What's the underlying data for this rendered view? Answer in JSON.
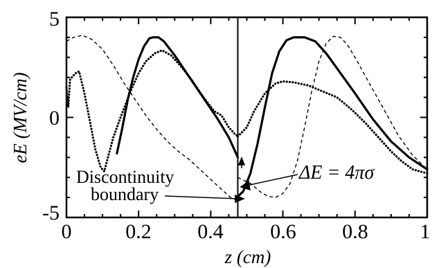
{
  "chart_data": {
    "type": "line",
    "xlabel": "z (cm)",
    "ylabel": "eE (MV/cm)",
    "xlim": [
      0,
      1
    ],
    "ylim": [
      -5,
      5
    ],
    "x_ticks": [
      "0",
      "0.2",
      "0.4",
      "0.6",
      "0.8",
      "1"
    ],
    "y_ticks": [
      "5",
      "0",
      "-5"
    ],
    "grid": false,
    "discontinuity_z": 0.475,
    "annotations": {
      "boundary_line1": "Discontinuity",
      "boundary_line2": "boundary",
      "jump": "ΔE = 4πσ"
    },
    "series": [
      {
        "style": "solid",
        "color": "#000000",
        "points": [
          [
            0.14,
            -1.8
          ],
          [
            0.155,
            -0.5
          ],
          [
            0.17,
            0.9
          ],
          [
            0.185,
            2.0
          ],
          [
            0.2,
            2.9
          ],
          [
            0.215,
            3.55
          ],
          [
            0.23,
            3.95
          ],
          [
            0.24,
            4.0
          ],
          [
            0.255,
            4.0
          ],
          [
            0.27,
            3.8
          ],
          [
            0.3,
            3.1
          ],
          [
            0.33,
            2.3
          ],
          [
            0.36,
            1.5
          ],
          [
            0.39,
            0.7
          ],
          [
            0.42,
            -0.1
          ],
          [
            0.45,
            -1.0
          ],
          [
            0.475,
            -2.0
          ],
          null,
          [
            0.475,
            -3.95
          ],
          [
            0.49,
            -3.7
          ],
          [
            0.51,
            -2.8
          ],
          [
            0.53,
            -1.3
          ],
          [
            0.55,
            0.5
          ],
          [
            0.57,
            2.2
          ],
          [
            0.59,
            3.3
          ],
          [
            0.61,
            3.85
          ],
          [
            0.63,
            4.0
          ],
          [
            0.66,
            4.0
          ],
          [
            0.69,
            3.8
          ],
          [
            0.72,
            3.2
          ],
          [
            0.76,
            2.2
          ],
          [
            0.8,
            1.2
          ],
          [
            0.85,
            -0.1
          ],
          [
            0.9,
            -1.2
          ],
          [
            0.95,
            -2.0
          ],
          [
            1.0,
            -2.6
          ]
        ]
      },
      {
        "style": "dashed",
        "color": "#000000",
        "points": [
          [
            0.0,
            3.8
          ],
          [
            0.02,
            4.0
          ],
          [
            0.045,
            4.1
          ],
          [
            0.07,
            3.9
          ],
          [
            0.1,
            3.4
          ],
          [
            0.13,
            2.6
          ],
          [
            0.16,
            1.7
          ],
          [
            0.19,
            0.9
          ],
          [
            0.22,
            0.1
          ],
          [
            0.25,
            -0.6
          ],
          [
            0.28,
            -1.2
          ],
          [
            0.31,
            -1.7
          ],
          [
            0.34,
            -2.1
          ],
          [
            0.37,
            -2.6
          ],
          [
            0.4,
            -3.1
          ],
          [
            0.43,
            -3.6
          ],
          [
            0.455,
            -4.0
          ],
          [
            0.475,
            -4.15
          ],
          null,
          [
            0.475,
            -3.0
          ],
          [
            0.51,
            -3.3
          ],
          [
            0.54,
            -3.75
          ],
          [
            0.56,
            -3.95
          ],
          [
            0.58,
            -4.0
          ],
          [
            0.6,
            -3.8
          ],
          [
            0.62,
            -3.3
          ],
          [
            0.64,
            -2.2
          ],
          [
            0.66,
            -0.5
          ],
          [
            0.68,
            1.3
          ],
          [
            0.7,
            2.8
          ],
          [
            0.72,
            3.7
          ],
          [
            0.74,
            4.05
          ],
          [
            0.76,
            4.0
          ],
          [
            0.78,
            3.6
          ],
          [
            0.8,
            3.0
          ],
          [
            0.84,
            1.7
          ],
          [
            0.88,
            0.4
          ],
          [
            0.92,
            -0.9
          ],
          [
            0.96,
            -1.9
          ],
          [
            1.0,
            -2.6
          ]
        ]
      },
      {
        "style": "dotted",
        "color": "#000000",
        "points": [
          [
            0.0,
            1.5
          ],
          [
            0.005,
            0.5
          ],
          [
            0.01,
            1.9
          ],
          [
            0.025,
            2.2
          ],
          [
            0.035,
            2.3
          ],
          [
            0.05,
            1.2
          ],
          [
            0.065,
            -0.2
          ],
          [
            0.08,
            -1.6
          ],
          [
            0.095,
            -2.5
          ],
          [
            0.105,
            -2.7
          ],
          [
            0.115,
            -2.0
          ],
          [
            0.13,
            -1.0
          ],
          [
            0.15,
            0.0
          ],
          [
            0.165,
            0.7
          ],
          [
            0.18,
            1.4
          ],
          [
            0.2,
            2.2
          ],
          [
            0.22,
            2.8
          ],
          [
            0.245,
            3.2
          ],
          [
            0.265,
            3.35
          ],
          [
            0.29,
            3.1
          ],
          [
            0.32,
            2.5
          ],
          [
            0.35,
            1.8
          ],
          [
            0.38,
            1.0
          ],
          [
            0.41,
            0.3
          ],
          [
            0.43,
            0.1
          ],
          [
            0.45,
            -0.5
          ],
          [
            0.465,
            -0.8
          ],
          [
            0.475,
            -0.95
          ],
          null,
          [
            0.475,
            -0.95
          ],
          [
            0.5,
            -0.5
          ],
          [
            0.52,
            0.3
          ],
          [
            0.55,
            1.2
          ],
          [
            0.58,
            1.7
          ],
          [
            0.6,
            1.8
          ],
          [
            0.63,
            1.75
          ],
          [
            0.67,
            1.6
          ],
          [
            0.71,
            1.3
          ],
          [
            0.75,
            1.0
          ],
          [
            0.79,
            0.4
          ],
          [
            0.83,
            -0.3
          ],
          [
            0.87,
            -1.1
          ],
          [
            0.9,
            -1.7
          ],
          [
            0.93,
            -2.2
          ],
          [
            0.96,
            -2.6
          ],
          [
            1.0,
            -2.8
          ]
        ]
      }
    ]
  }
}
